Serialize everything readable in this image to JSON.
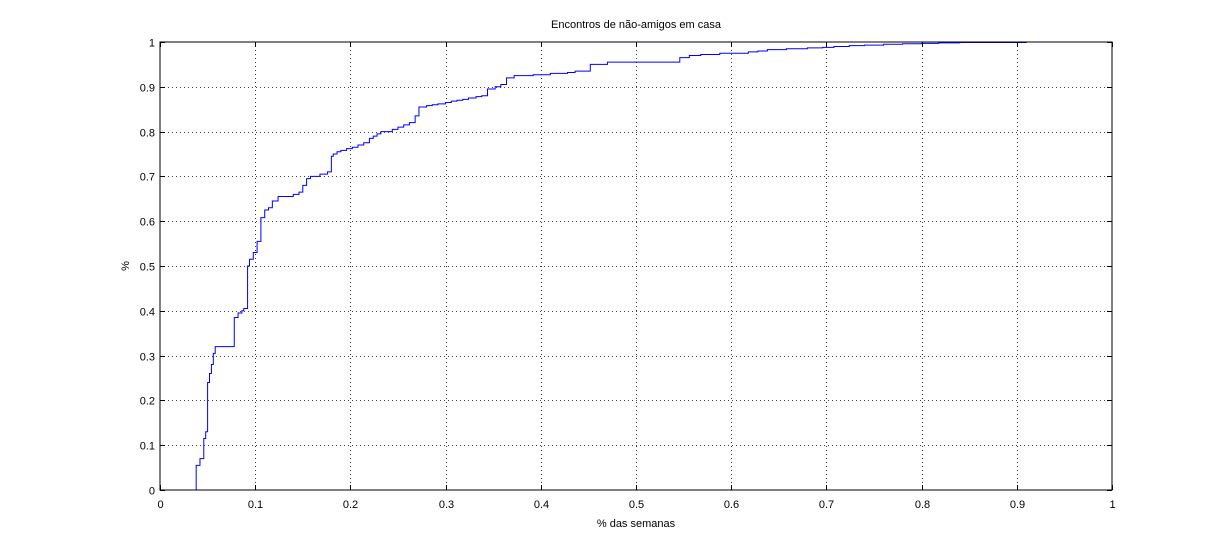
{
  "chart_data": {
    "type": "line",
    "style": "step",
    "title": "Encontros de não-amigos em casa",
    "xlabel": "% das semanas",
    "ylabel": "%",
    "xlim": [
      0,
      1
    ],
    "ylim": [
      0,
      1
    ],
    "grid": true,
    "x_ticks": [
      "0",
      "0.1",
      "0.2",
      "0.3",
      "0.4",
      "0.5",
      "0.6",
      "0.7",
      "0.8",
      "0.9",
      "1"
    ],
    "y_ticks": [
      "0",
      "0.1",
      "0.2",
      "0.3",
      "0.4",
      "0.5",
      "0.6",
      "0.7",
      "0.8",
      "0.9",
      "1"
    ],
    "line_color": "#0000ff",
    "series": [
      {
        "x": [
          0.038,
          0.038,
          0.042,
          0.046,
          0.048,
          0.05,
          0.052,
          0.054,
          0.056,
          0.058,
          0.06,
          0.062,
          0.064,
          0.078,
          0.082,
          0.086,
          0.088,
          0.092,
          0.094,
          0.098,
          0.102,
          0.106,
          0.11,
          0.114,
          0.118,
          0.124,
          0.13,
          0.136,
          0.14,
          0.146,
          0.15,
          0.154,
          0.158,
          0.162,
          0.168,
          0.172,
          0.176,
          0.18,
          0.182,
          0.186,
          0.19,
          0.196,
          0.202,
          0.208,
          0.214,
          0.22,
          0.224,
          0.228,
          0.232,
          0.238,
          0.244,
          0.25,
          0.256,
          0.262,
          0.268,
          0.272,
          0.276,
          0.28,
          0.286,
          0.292,
          0.3,
          0.306,
          0.312,
          0.318,
          0.324,
          0.332,
          0.338,
          0.344,
          0.352,
          0.358,
          0.364,
          0.372,
          0.38,
          0.392,
          0.41,
          0.428,
          0.436,
          0.452,
          0.47,
          0.49,
          0.546,
          0.556,
          0.568,
          0.588,
          0.618,
          0.628,
          0.638,
          0.658,
          0.68,
          0.696,
          0.708,
          0.724,
          0.74,
          0.76,
          0.78,
          0.8,
          0.818,
          0.84,
          0.87,
          0.91,
          1.0
        ],
        "y": [
          0.0,
          0.055,
          0.07,
          0.115,
          0.13,
          0.24,
          0.26,
          0.28,
          0.305,
          0.32,
          0.32,
          0.32,
          0.32,
          0.385,
          0.395,
          0.4,
          0.405,
          0.5,
          0.515,
          0.53,
          0.555,
          0.608,
          0.625,
          0.63,
          0.645,
          0.655,
          0.655,
          0.655,
          0.66,
          0.665,
          0.68,
          0.695,
          0.7,
          0.7,
          0.705,
          0.705,
          0.71,
          0.745,
          0.75,
          0.755,
          0.758,
          0.762,
          0.765,
          0.77,
          0.775,
          0.785,
          0.79,
          0.795,
          0.8,
          0.8,
          0.805,
          0.81,
          0.815,
          0.82,
          0.835,
          0.855,
          0.855,
          0.858,
          0.86,
          0.862,
          0.865,
          0.868,
          0.87,
          0.872,
          0.875,
          0.878,
          0.88,
          0.895,
          0.9,
          0.905,
          0.92,
          0.925,
          0.925,
          0.927,
          0.93,
          0.932,
          0.935,
          0.95,
          0.955,
          0.955,
          0.965,
          0.97,
          0.972,
          0.975,
          0.978,
          0.98,
          0.983,
          0.985,
          0.987,
          0.988,
          0.99,
          0.992,
          0.993,
          0.995,
          0.996,
          0.997,
          0.998,
          0.999,
          0.999,
          1.0,
          1.0
        ]
      }
    ]
  }
}
